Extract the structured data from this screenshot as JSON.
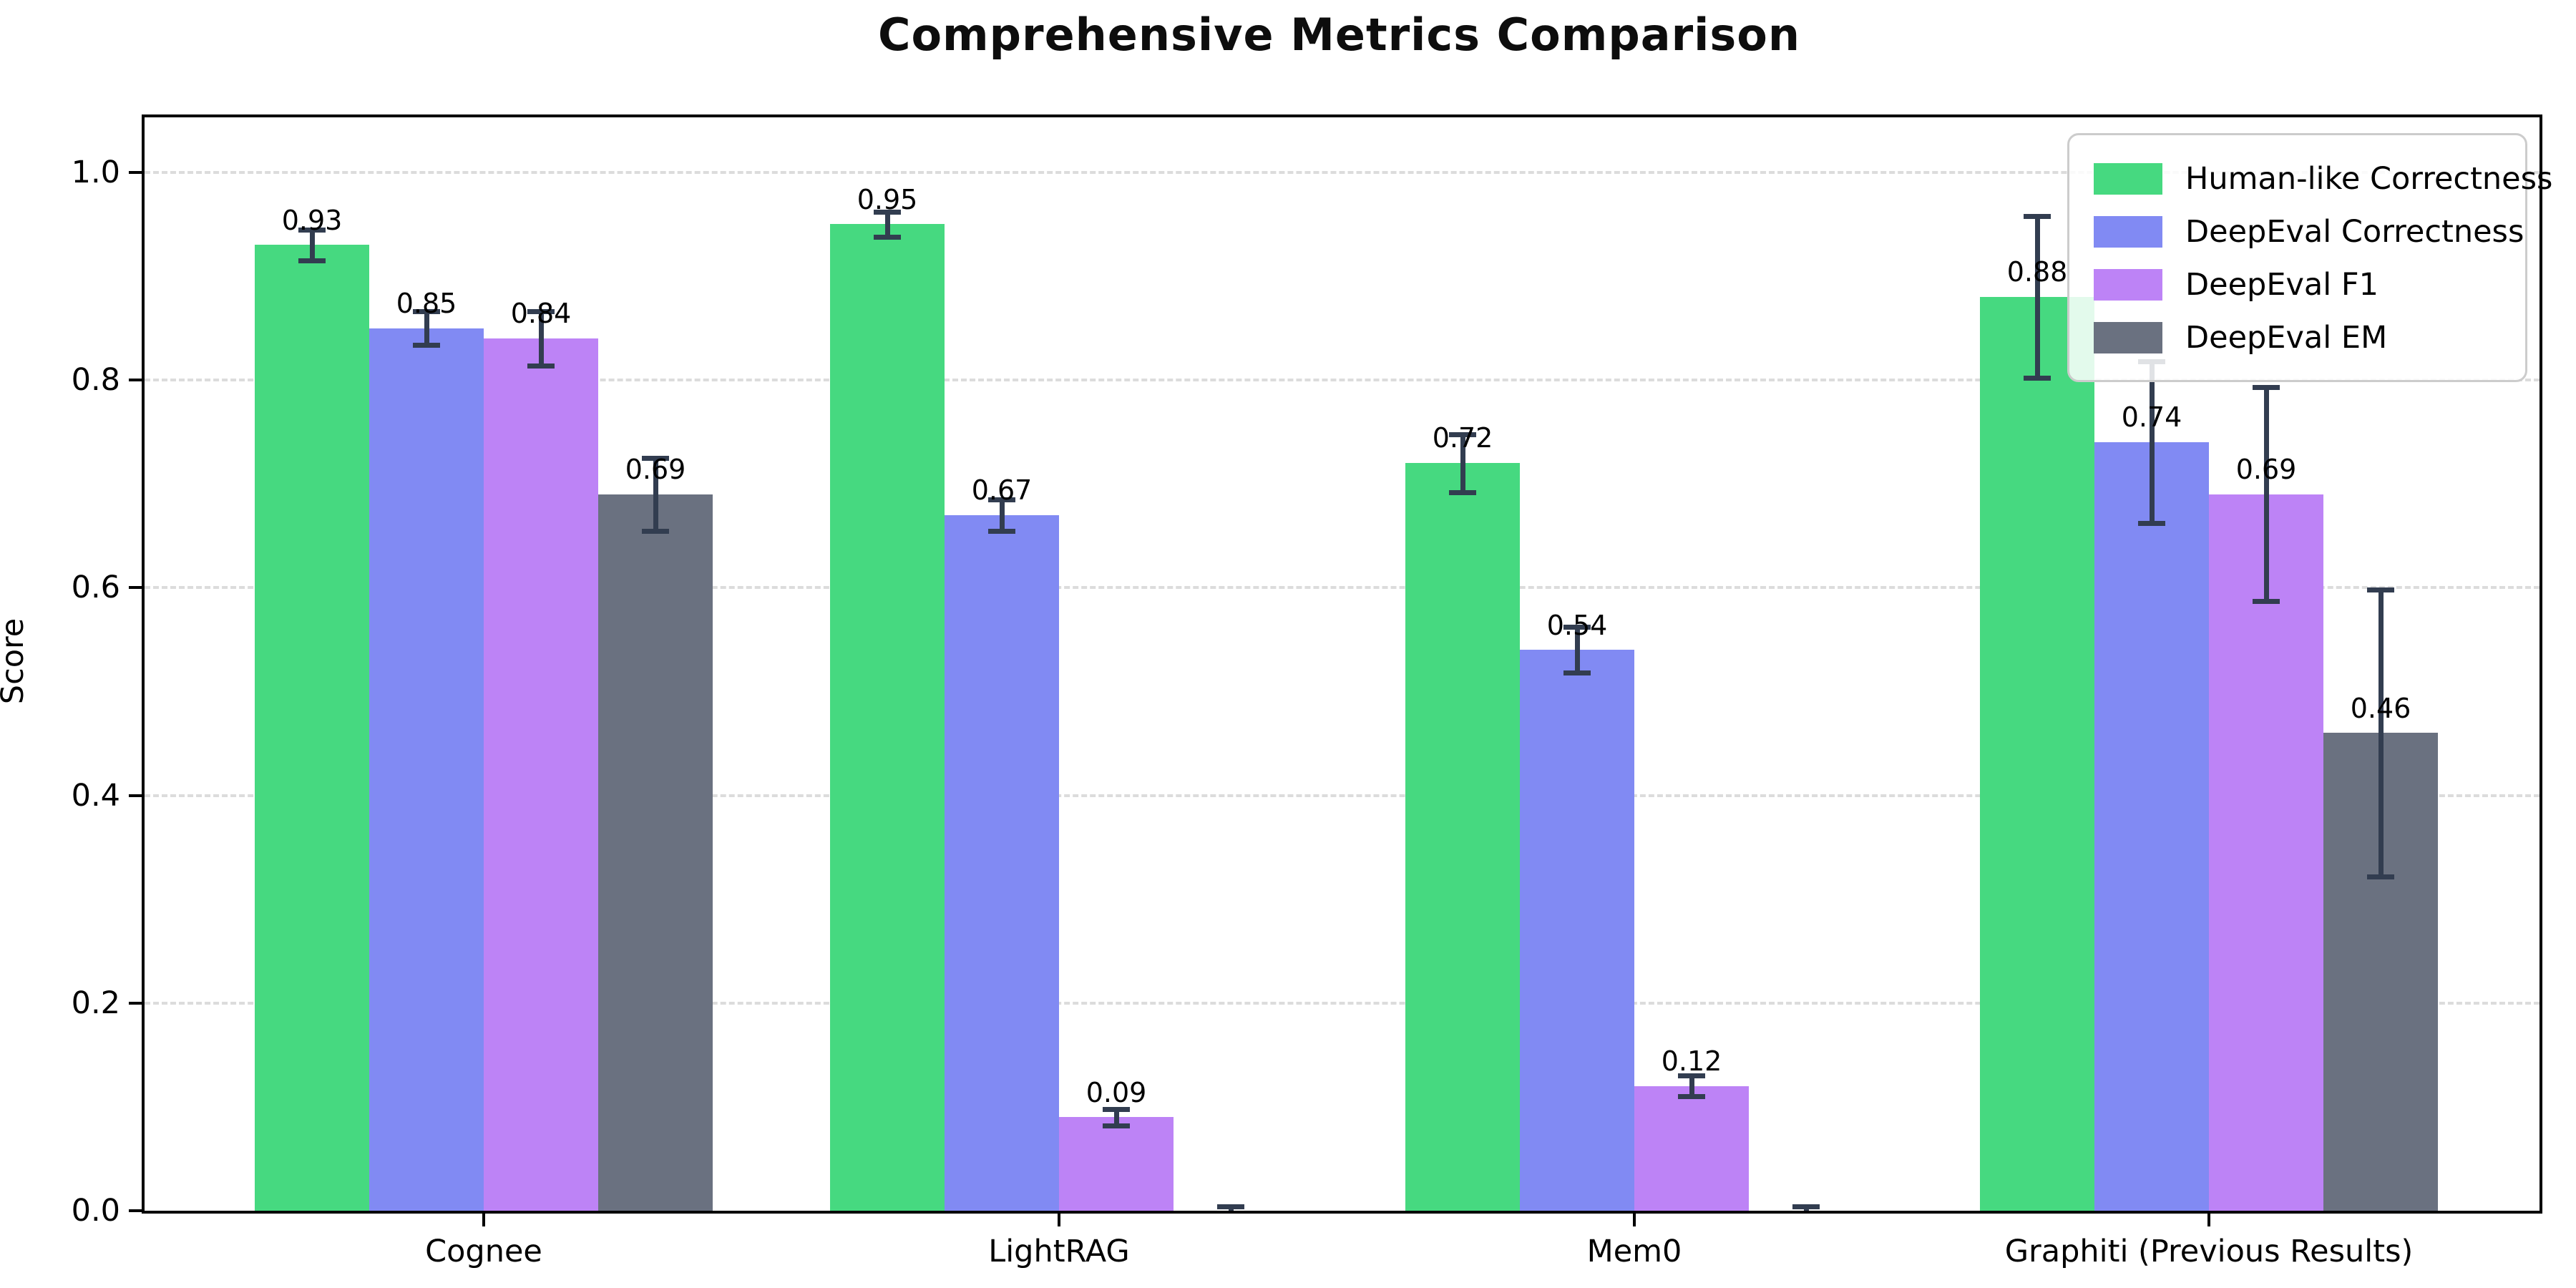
{
  "chart_data": {
    "type": "bar",
    "title": "Comprehensive Metrics Comparison",
    "ylabel": "Score",
    "xlabel": "",
    "categories": [
      "Cognee",
      "LightRAG",
      "Mem0",
      "Graphiti (Previous Results)"
    ],
    "series": [
      {
        "name": "Human-like Correctness",
        "color": "#46d980",
        "values": [
          0.93,
          0.95,
          0.72,
          0.88
        ],
        "errors": [
          0.015,
          0.012,
          0.028,
          0.078
        ],
        "labels": [
          "0.93",
          "0.95",
          "0.72",
          "0.88"
        ]
      },
      {
        "name": "DeepEval Correctness",
        "color": "#818af3",
        "values": [
          0.85,
          0.67,
          0.54,
          0.74
        ],
        "errors": [
          0.016,
          0.015,
          0.022,
          0.078
        ],
        "labels": [
          "0.85",
          "0.67",
          "0.54",
          "0.74"
        ]
      },
      {
        "name": "DeepEval F1",
        "color": "#bd83f6",
        "values": [
          0.84,
          0.09,
          0.12,
          0.69
        ],
        "errors": [
          0.026,
          0.008,
          0.01,
          0.103
        ],
        "labels": [
          "0.84",
          "0.09",
          "0.12",
          "0.69"
        ]
      },
      {
        "name": "DeepEval EM",
        "color": "#6a7180",
        "values": [
          0.69,
          0.0,
          0.0,
          0.46
        ],
        "errors": [
          0.035,
          0.004,
          0.004,
          0.138
        ],
        "labels": [
          "0.69",
          null,
          null,
          "0.46"
        ]
      }
    ],
    "yticks": [
      "0.0",
      "0.2",
      "0.4",
      "0.6",
      "0.8",
      "1.0"
    ],
    "ylim": [
      0,
      1.053
    ],
    "grid": "horizontal-dashed",
    "legend_position": "upper-right",
    "error_bar_color": "#323d50",
    "grid_color": "#dcdcdc"
  }
}
